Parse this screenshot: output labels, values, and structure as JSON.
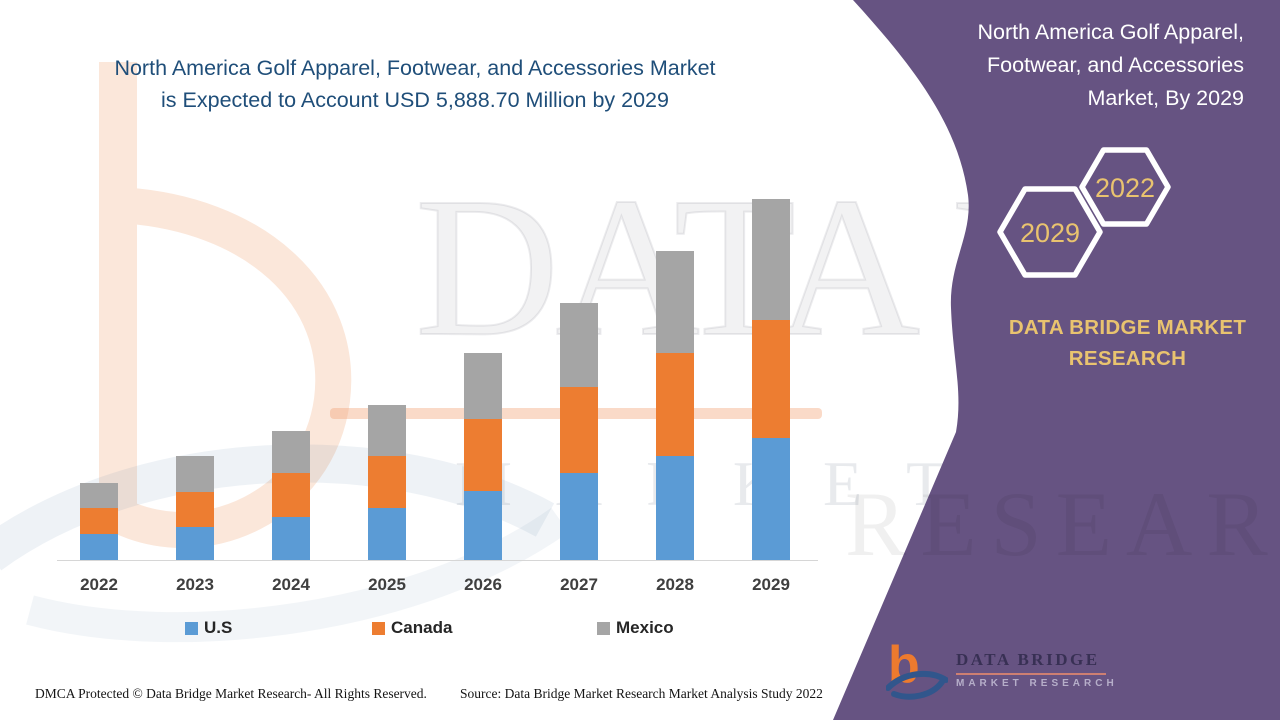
{
  "chart": {
    "title_line1": "North America Golf Apparel, Footwear, and Accessories Market",
    "title_line2": "is Expected to Account USD 5,888.70 Million by 2029"
  },
  "chart_data": {
    "type": "bar",
    "stacked": true,
    "unit": "USD Million",
    "title": "North America Golf Apparel, Footwear, and Accessories Market is Expected to Account USD 5,888.70 Million by 2029",
    "categories": [
      "2022",
      "2023",
      "2024",
      "2025",
      "2026",
      "2027",
      "2028",
      "2029"
    ],
    "series": [
      {
        "name": "U.S",
        "color": "#5B9BD5",
        "values": [
          424,
          538,
          701,
          848,
          1125,
          1419,
          1696,
          1990
        ]
      },
      {
        "name": "Canada",
        "color": "#ED7D31",
        "values": [
          424,
          571,
          718,
          848,
          1174,
          1403,
          1680,
          1925
        ]
      },
      {
        "name": "Mexico",
        "color": "#A5A5A5",
        "values": [
          408,
          587,
          685,
          832,
          1076,
          1370,
          1664,
          1973.7
        ]
      }
    ],
    "totals": [
      1256,
      1696,
      2104,
      2528,
      3375,
      4192,
      5040,
      5888.7
    ],
    "highlight_value_2029_total": "USD 5,888.70 Million",
    "xlabel": "",
    "ylabel": "",
    "ylim": [
      0,
      6000
    ],
    "grid": false,
    "y_axis_shown": false,
    "legend_position": "bottom"
  },
  "legend": {
    "items": [
      {
        "label": "U.S",
        "color": "#5B9BD5"
      },
      {
        "label": "Canada",
        "color": "#ED7D31"
      },
      {
        "label": "Mexico",
        "color": "#A5A5A5"
      }
    ]
  },
  "panel": {
    "title_lines": [
      "North America Golf Apparel,",
      "Footwear, and Accessories",
      "Market, By 2029"
    ],
    "hexagons": [
      {
        "label": "2022"
      },
      {
        "label": "2029"
      }
    ],
    "brand_line1": "DATA BRIDGE MARKET",
    "brand_line2": "RESEARCH"
  },
  "logo": {
    "title": "DATA BRIDGE",
    "subtitle": "MARKET RESEARCH"
  },
  "watermark": {
    "text_top": "DATA BRI",
    "text_bottom": "MARKET RE",
    "panel_text": "RESEARCH"
  },
  "footer": {
    "dmca": "DMCA Protected © Data Bridge Market Research- All Rights Reserved.",
    "source": "Source: Data Bridge Market Research Market Analysis Study 2022"
  },
  "colors": {
    "us": "#5B9BD5",
    "canada": "#ED7D31",
    "mexico": "#A5A5A5",
    "title_blue": "#1F4E79",
    "panel_purple": "#665382",
    "gold": "#E9C36F",
    "axis_line": "#D6D6D6",
    "axis_label": "#3F3F3F"
  }
}
